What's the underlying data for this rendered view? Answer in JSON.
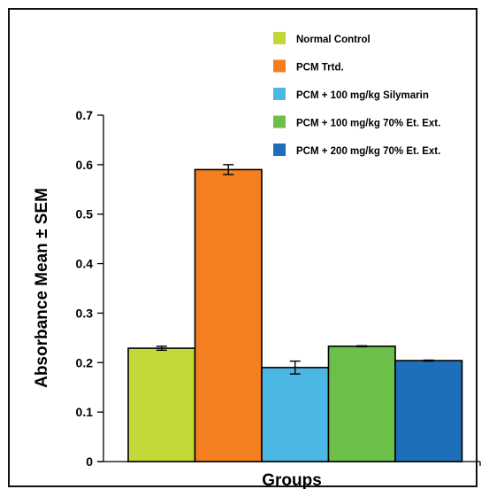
{
  "chart_data": {
    "type": "bar",
    "title": "",
    "xlabel": "Groups",
    "ylabel": "Absorbance Mean ± SEM",
    "ylim": [
      0,
      0.7
    ],
    "yticks": [
      "0",
      "0.1",
      "0.2",
      "0.3",
      "0.4",
      "0.5",
      "0.6",
      "0.7"
    ],
    "legend_position": "top-right",
    "series": [
      {
        "name": "Normal Control",
        "value": 0.229,
        "sem": 0.004,
        "color": "#c3d836"
      },
      {
        "name": "PCM Trtd.",
        "value": 0.59,
        "sem": 0.01,
        "color": "#f47f20"
      },
      {
        "name": "PCM + 100 mg/kg Silymarin",
        "value": 0.19,
        "sem": 0.013,
        "color": "#4cb7e4"
      },
      {
        "name": "PCM + 100 mg/kg 70% Et. Ext.",
        "value": 0.233,
        "sem": 0.001,
        "color": "#6cc04a"
      },
      {
        "name": "PCM + 200 mg/kg 70% Et. Ext.",
        "value": 0.204,
        "sem": 0.001,
        "color": "#1c6fb8"
      }
    ]
  }
}
